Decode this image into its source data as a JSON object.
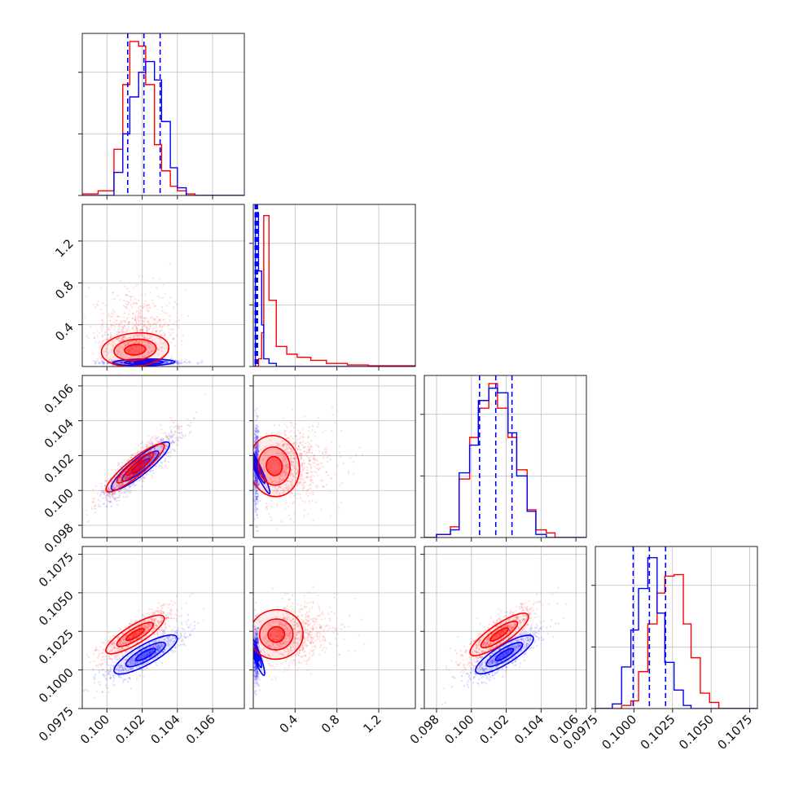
{
  "chart_data": {
    "type": "corner",
    "parameters": 4,
    "colors": {
      "series_a": "#ff0000",
      "series_b": "#0000ff"
    },
    "grid": true,
    "tick_labels": {
      "p0": [
        "0.100",
        "0.102",
        "0.104",
        "0.106"
      ],
      "p1": [
        "0.4",
        "0.8",
        "1.2"
      ],
      "p2": [
        "0.098",
        "0.100",
        "0.102",
        "0.104",
        "0.106"
      ],
      "p3": [
        "0.0975",
        "0.1000",
        "0.1025",
        "0.1050",
        "0.1075"
      ]
    },
    "ranges": {
      "p0": [
        0.0986,
        0.1078
      ],
      "p1": [
        0.0,
        1.55
      ],
      "p2": [
        0.0973,
        0.1066
      ],
      "p3": [
        0.0975,
        0.108
      ]
    },
    "means": {
      "red": [
        0.1016,
        0.25,
        0.1014,
        0.1023
      ],
      "blue": [
        0.1021,
        0.03,
        0.1014,
        0.101
      ]
    },
    "histograms": {
      "p0": {
        "edges": [
          0.0986,
          0.0995,
          0.1004,
          0.1009,
          0.1013,
          0.1018,
          0.1022,
          0.1027,
          0.1031,
          0.1036,
          0.104,
          0.1045,
          0.105,
          0.1078
        ],
        "red": [
          0.01,
          0.03,
          0.3,
          0.72,
          1.0,
          0.97,
          0.72,
          0.33,
          0.16,
          0.06,
          0.03,
          0.01,
          0.0
        ],
        "blue": [
          0.0,
          0.0,
          0.15,
          0.4,
          0.64,
          0.8,
          0.87,
          0.75,
          0.48,
          0.18,
          0.05,
          0.0,
          0.0
        ]
      },
      "p1": {
        "edges": [
          0.0,
          0.02,
          0.05,
          0.08,
          0.1,
          0.15,
          0.22,
          0.32,
          0.42,
          0.55,
          0.7,
          0.9,
          1.1,
          1.55
        ],
        "red": [
          0.0,
          0.0,
          0.05,
          0.22,
          0.98,
          0.43,
          0.13,
          0.08,
          0.06,
          0.04,
          0.02,
          0.01,
          0.005
        ],
        "blue": [
          0.0,
          1.0,
          0.62,
          0.27,
          0.05,
          0.02,
          0.0,
          0.0,
          0.0,
          0.0,
          0.0,
          0.0,
          0.0
        ]
      },
      "p2": {
        "edges": [
          0.0973,
          0.098,
          0.0988,
          0.0993,
          0.0999,
          0.1004,
          0.101,
          0.1015,
          0.1021,
          0.1026,
          0.1032,
          0.1037,
          0.1043,
          0.1048,
          0.1066
        ],
        "red": [
          0.0,
          0.02,
          0.07,
          0.38,
          0.65,
          0.84,
          1.0,
          0.84,
          0.65,
          0.44,
          0.18,
          0.05,
          0.03,
          0.0
        ],
        "blue": [
          0.0,
          0.02,
          0.05,
          0.42,
          0.6,
          0.89,
          0.97,
          0.94,
          0.68,
          0.4,
          0.17,
          0.02,
          0.0,
          0.0
        ]
      },
      "p3": {
        "edges": [
          0.0975,
          0.098,
          0.0986,
          0.0992,
          0.0998,
          0.1003,
          0.1009,
          0.1015,
          0.102,
          0.1026,
          0.1032,
          0.1037,
          0.1043,
          0.1049,
          0.1055,
          0.108
        ],
        "red": [
          0.0,
          0.0,
          0.0,
          0.02,
          0.05,
          0.24,
          0.55,
          0.75,
          0.86,
          0.87,
          0.55,
          0.33,
          0.1,
          0.04,
          0.0
        ],
        "blue": [
          0.0,
          0.0,
          0.03,
          0.27,
          0.51,
          0.78,
          0.98,
          0.62,
          0.3,
          0.12,
          0.02,
          0.0,
          0.0,
          0.0,
          0.0
        ]
      }
    },
    "contours": {
      "p1_vs_p0": {
        "red": {
          "center": [
            0.1016,
            0.16
          ],
          "sx": 0.0012,
          "sy": 0.1,
          "corr": 0.3
        },
        "blue": {
          "center": [
            0.1021,
            0.04
          ],
          "sx": 0.0011,
          "sy": 0.02,
          "corr": 0.2
        }
      },
      "p2_vs_p0": {
        "red": {
          "center": [
            0.1016,
            0.1013
          ],
          "sx": 0.0011,
          "sy": 0.001,
          "corr": 0.9
        },
        "blue": {
          "center": [
            0.1019,
            0.1014
          ],
          "sx": 0.0011,
          "sy": 0.001,
          "corr": 0.9
        }
      },
      "p2_vs_p1": {
        "red": {
          "center": [
            0.2,
            0.1014
          ],
          "sx": 0.15,
          "sy": 0.0011,
          "corr": 0.25
        },
        "blue": {
          "center": [
            0.03,
            0.1014
          ],
          "sx": 0.02,
          "sy": 0.0011,
          "corr": 0.1
        }
      },
      "p3_vs_p0": {
        "red": {
          "center": [
            0.1016,
            0.1023
          ],
          "sx": 0.0011,
          "sy": 0.0009,
          "corr": 0.85
        },
        "blue": {
          "center": [
            0.1022,
            0.101
          ],
          "sx": 0.0012,
          "sy": 0.0009,
          "corr": 0.85
        }
      },
      "p3_vs_p1": {
        "red": {
          "center": [
            0.22,
            0.1023
          ],
          "sx": 0.16,
          "sy": 0.001,
          "corr": 0.25
        },
        "blue": {
          "center": [
            0.03,
            0.101
          ],
          "sx": 0.02,
          "sy": 0.0009,
          "corr": 0.1
        }
      },
      "p3_vs_p2": {
        "red": {
          "center": [
            0.1016,
            0.1023
          ],
          "sx": 0.0011,
          "sy": 0.001,
          "corr": 0.85
        },
        "blue": {
          "center": [
            0.1019,
            0.101
          ],
          "sx": 0.0011,
          "sy": 0.0009,
          "corr": 0.85
        }
      }
    }
  }
}
